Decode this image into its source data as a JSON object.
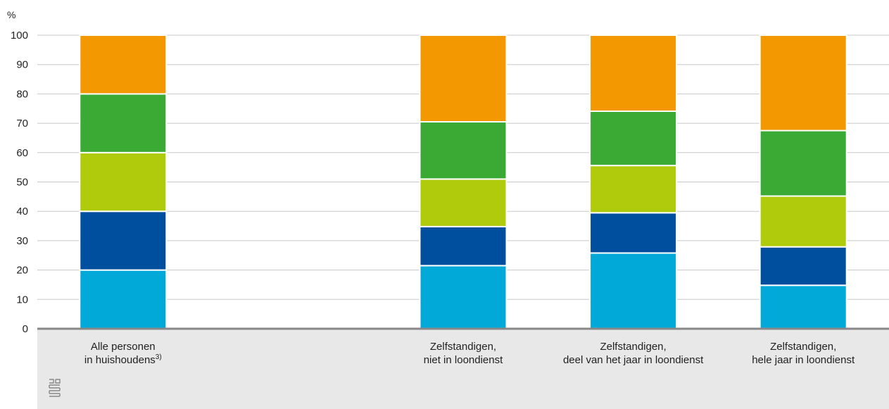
{
  "colors": {
    "series": [
      "#00a9d8",
      "#004f9e",
      "#afcb0c",
      "#3aaa35",
      "#f39800"
    ],
    "footer_bg": "#e8e8e8",
    "axis": "#888888",
    "grid": "#c8c8c8"
  },
  "footer_icon": "cbs-logo-icon",
  "chart_data": {
    "type": "bar",
    "stacked": true,
    "unit_label": "%",
    "ylim": [
      0,
      100
    ],
    "yticks": [
      0,
      10,
      20,
      30,
      40,
      50,
      60,
      70,
      80,
      90,
      100
    ],
    "grid": true,
    "categories": [
      {
        "lines": [
          "Alle personen",
          "in huishoudens"
        ],
        "sup": "3)"
      },
      {
        "lines": [
          "",
          ""
        ],
        "sup": ""
      },
      {
        "lines": [
          "Zelfstandigen,",
          "niet in loondienst"
        ],
        "sup": ""
      },
      {
        "lines": [
          "Zelfstandigen,",
          "deel van het jaar in loondienst"
        ],
        "sup": ""
      },
      {
        "lines": [
          "Zelfstandigen,",
          "hele jaar in loondienst"
        ],
        "sup": ""
      }
    ],
    "series": [
      {
        "values": [
          20,
          null,
          21.5,
          25.8,
          14.8
        ]
      },
      {
        "values": [
          20,
          null,
          13.3,
          13.7,
          13.1
        ]
      },
      {
        "values": [
          20,
          null,
          16.2,
          16.1,
          17.3
        ]
      },
      {
        "values": [
          20,
          null,
          19.5,
          18.5,
          22.3
        ]
      },
      {
        "values": [
          20,
          null,
          29.5,
          25.9,
          32.5
        ]
      }
    ]
  }
}
